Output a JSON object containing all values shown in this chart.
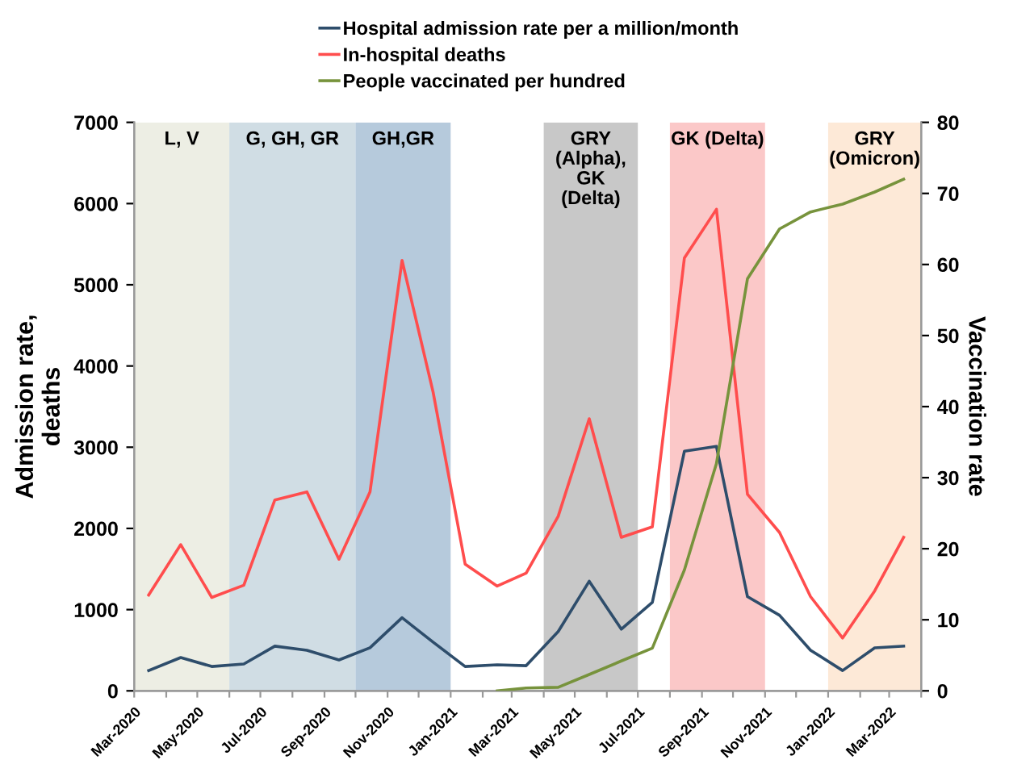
{
  "chart_data": {
    "type": "line",
    "ylabel": "Admission rate,\ndeaths",
    "y2label": "Vaccination rate",
    "x": [
      "2020-03-15",
      "2020-04-15",
      "2020-05-15",
      "2020-06-15",
      "2020-07-15",
      "2020-08-15",
      "2020-09-15",
      "2020-10-15",
      "2020-11-15",
      "2020-12-15",
      "2021-01-15",
      "2021-02-15",
      "2021-03-15",
      "2021-04-15",
      "2021-05-15",
      "2021-06-15",
      "2021-07-15",
      "2021-08-15",
      "2021-09-15",
      "2021-10-15",
      "2021-11-15",
      "2021-12-15",
      "2022-01-15",
      "2022-02-15",
      "2022-03-15"
    ],
    "series": [
      {
        "name": "Hospital admission rate per a million/month",
        "color": "#2e4d6b",
        "values": [
          250,
          410,
          300,
          330,
          550,
          500,
          380,
          530,
          900,
          600,
          300,
          320,
          310,
          730,
          1350,
          760,
          1090,
          2950,
          3010,
          1160,
          930,
          500,
          250,
          530,
          550
        ]
      },
      {
        "name": "In-hospital deaths",
        "color": "#ff4d4d",
        "values": [
          1180,
          1800,
          1150,
          1300,
          2350,
          2450,
          1620,
          2450,
          5300,
          3680,
          1560,
          1290,
          1450,
          2150,
          3350,
          1890,
          2020,
          5330,
          5930,
          2420,
          1950,
          1160,
          650,
          1230,
          1890
        ]
      },
      {
        "name": "People vaccinated per hundred",
        "color": "#77933c",
        "axis": "y2",
        "values": [
          null,
          null,
          null,
          null,
          null,
          null,
          null,
          null,
          null,
          null,
          null,
          0,
          0.4,
          0.5,
          2.3,
          4.2,
          6,
          17,
          32,
          58,
          65,
          67.4,
          68.5,
          70.2,
          72
        ]
      }
    ],
    "xlim": [
      "2020-03-01",
      "2022-04-01"
    ],
    "xticks": [
      {
        "value": "2020-03-01",
        "label": "Mar-2020"
      },
      {
        "value": "2020-04-01",
        "label": null
      },
      {
        "value": "2020-05-01",
        "label": "May-2020"
      },
      {
        "value": "2020-06-01",
        "label": null
      },
      {
        "value": "2020-07-01",
        "label": "Jul-2020"
      },
      {
        "value": "2020-08-01",
        "label": null
      },
      {
        "value": "2020-09-01",
        "label": "Sep-2020"
      },
      {
        "value": "2020-10-01",
        "label": null
      },
      {
        "value": "2020-11-01",
        "label": "Nov-2020"
      },
      {
        "value": "2020-12-01",
        "label": null
      },
      {
        "value": "2021-01-01",
        "label": "Jan-2021"
      },
      {
        "value": "2021-02-01",
        "label": null
      },
      {
        "value": "2021-03-01",
        "label": "Mar-2021"
      },
      {
        "value": "2021-04-01",
        "label": null
      },
      {
        "value": "2021-05-01",
        "label": "May-2021"
      },
      {
        "value": "2021-06-01",
        "label": null
      },
      {
        "value": "2021-07-01",
        "label": "Jul-2021"
      },
      {
        "value": "2021-08-01",
        "label": null
      },
      {
        "value": "2021-09-01",
        "label": "Sep-2021"
      },
      {
        "value": "2021-10-01",
        "label": null
      },
      {
        "value": "2021-11-01",
        "label": "Nov-2021"
      },
      {
        "value": "2021-12-01",
        "label": null
      },
      {
        "value": "2022-01-01",
        "label": "Jan-2022"
      },
      {
        "value": "2022-02-01",
        "label": null
      },
      {
        "value": "2022-03-01",
        "label": "Mar-2022"
      },
      {
        "value": "2022-04-01",
        "label": null
      }
    ],
    "ylim": [
      0,
      7000
    ],
    "yticks": [
      0,
      1000,
      2000,
      3000,
      4000,
      5000,
      6000,
      7000
    ],
    "y2lim": [
      0,
      80
    ],
    "y2ticks": [
      0,
      10,
      20,
      30,
      40,
      50,
      60,
      70,
      80
    ],
    "bands": [
      {
        "axis": "x",
        "from": "2020-03-01",
        "to": "2020-06-01",
        "label": "L, V",
        "color": "#edeee4"
      },
      {
        "axis": "x",
        "from": "2020-06-01",
        "to": "2020-10-01",
        "label": "G, GH, GR",
        "color": "#d0dde4"
      },
      {
        "axis": "x",
        "from": "2020-10-01",
        "to": "2021-01-01",
        "label": "GH,GR",
        "color": "#b6cadc"
      },
      {
        "axis": "x",
        "from": "2021-04-01",
        "to": "2021-07-01",
        "label": "GRY\n(Alpha),\nGK\n(Delta)",
        "color": "#c8c8c8"
      },
      {
        "axis": "x",
        "from": "2021-08-01",
        "to": "2021-11-01",
        "label": "GK (Delta)",
        "color": "#fbc8c8"
      },
      {
        "axis": "x",
        "from": "2022-01-01",
        "to": "2022-04-01",
        "label": "GRY\n(Omicron)",
        "color": "#fde9d7"
      }
    ],
    "grid": false,
    "legend": "top",
    "marker": "none",
    "line_style": "solid"
  }
}
